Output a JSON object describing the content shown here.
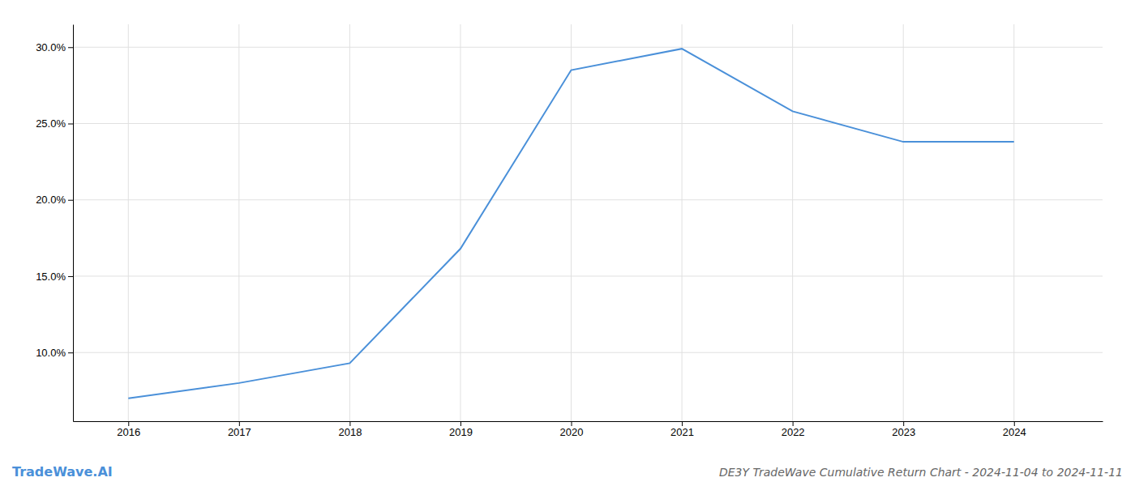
{
  "chart_data": {
    "type": "line",
    "title": "DE3Y TradeWave Cumulative Return Chart - 2024-11-04 to 2024-11-11",
    "annotations": [
      {
        "text": "TradeWave.AI",
        "color": "#4a90d9"
      }
    ],
    "x": [
      2016,
      2017,
      2018,
      2019,
      2020,
      2021,
      2022,
      2023,
      2024
    ],
    "values": [
      7.0,
      8.0,
      9.3,
      16.8,
      28.5,
      29.9,
      25.8,
      23.8,
      23.8
    ],
    "color": "#4a90d9",
    "xlim": [
      2015.5,
      2024.8
    ],
    "ylim": [
      5.5,
      31.5
    ],
    "xticks": [
      2016,
      2017,
      2018,
      2019,
      2020,
      2021,
      2022,
      2023,
      2024
    ],
    "yticks": [
      {
        "value": 10.0,
        "label": "10.0%"
      },
      {
        "value": 15.0,
        "label": "15.0%"
      },
      {
        "value": 20.0,
        "label": "20.0%"
      },
      {
        "value": 25.0,
        "label": "25.0%"
      },
      {
        "value": 30.0,
        "label": "30.0%"
      }
    ],
    "grid": true
  }
}
